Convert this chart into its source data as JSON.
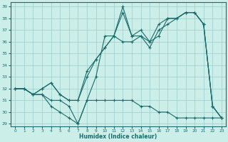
{
  "xlabel": "Humidex (Indice chaleur)",
  "bg_color": "#cceee8",
  "grid_color": "#99cccc",
  "line_color": "#1a6b6b",
  "xlim": [
    -0.5,
    23.5
  ],
  "ylim": [
    28.8,
    39.4
  ],
  "yticks": [
    29,
    30,
    31,
    32,
    33,
    34,
    35,
    36,
    37,
    38,
    39
  ],
  "xticks": [
    0,
    1,
    2,
    3,
    4,
    5,
    6,
    7,
    8,
    9,
    10,
    11,
    12,
    13,
    14,
    15,
    16,
    17,
    18,
    19,
    20,
    21,
    22,
    23
  ],
  "lines": [
    {
      "x": [
        0,
        1,
        2,
        3,
        4,
        5,
        6,
        7,
        8,
        9,
        10,
        11,
        12,
        13,
        14,
        15,
        16,
        17,
        18,
        19,
        20,
        21,
        22,
        23
      ],
      "y": [
        32,
        32,
        31.5,
        32,
        32.5,
        31.5,
        31,
        31,
        33,
        34.5,
        35.5,
        36.5,
        39,
        36.5,
        36.5,
        35.5,
        37,
        37.5,
        38,
        38.5,
        38.5,
        37.5,
        30.5,
        29.5
      ]
    },
    {
      "x": [
        0,
        1,
        2,
        3,
        4,
        5,
        6,
        7,
        8,
        9,
        10,
        11,
        12,
        13,
        14,
        15,
        16,
        17,
        18,
        19,
        20,
        21,
        22,
        23
      ],
      "y": [
        32,
        32,
        31.5,
        32,
        32.5,
        31.5,
        31,
        31,
        33.5,
        34.5,
        35.5,
        36.5,
        38.5,
        36.5,
        37,
        36,
        37.5,
        38,
        38,
        38.5,
        38.5,
        37.5,
        30.5,
        29.5
      ]
    },
    {
      "x": [
        0,
        1,
        2,
        3,
        4,
        5,
        6,
        7,
        8,
        9,
        10,
        11,
        12,
        13,
        14,
        15,
        16,
        17,
        18,
        19,
        20,
        21,
        22,
        23
      ],
      "y": [
        32,
        32,
        31.5,
        31.5,
        30.5,
        30,
        29.5,
        29,
        31,
        33,
        36.5,
        36.5,
        36,
        36,
        36.5,
        36,
        36.5,
        38,
        38,
        38.5,
        38.5,
        37.5,
        30.5,
        29.5
      ]
    },
    {
      "x": [
        0,
        1,
        2,
        3,
        4,
        5,
        6,
        7,
        8,
        9,
        10,
        11,
        12,
        13,
        14,
        15,
        16,
        17,
        18,
        19,
        20,
        21,
        22,
        23
      ],
      "y": [
        32,
        32,
        31.5,
        31.5,
        31,
        31,
        30.5,
        29,
        31,
        31,
        31,
        31,
        31,
        31,
        30.5,
        30.5,
        30,
        30,
        29.5,
        29.5,
        29.5,
        29.5,
        29.5,
        29.5
      ]
    }
  ]
}
